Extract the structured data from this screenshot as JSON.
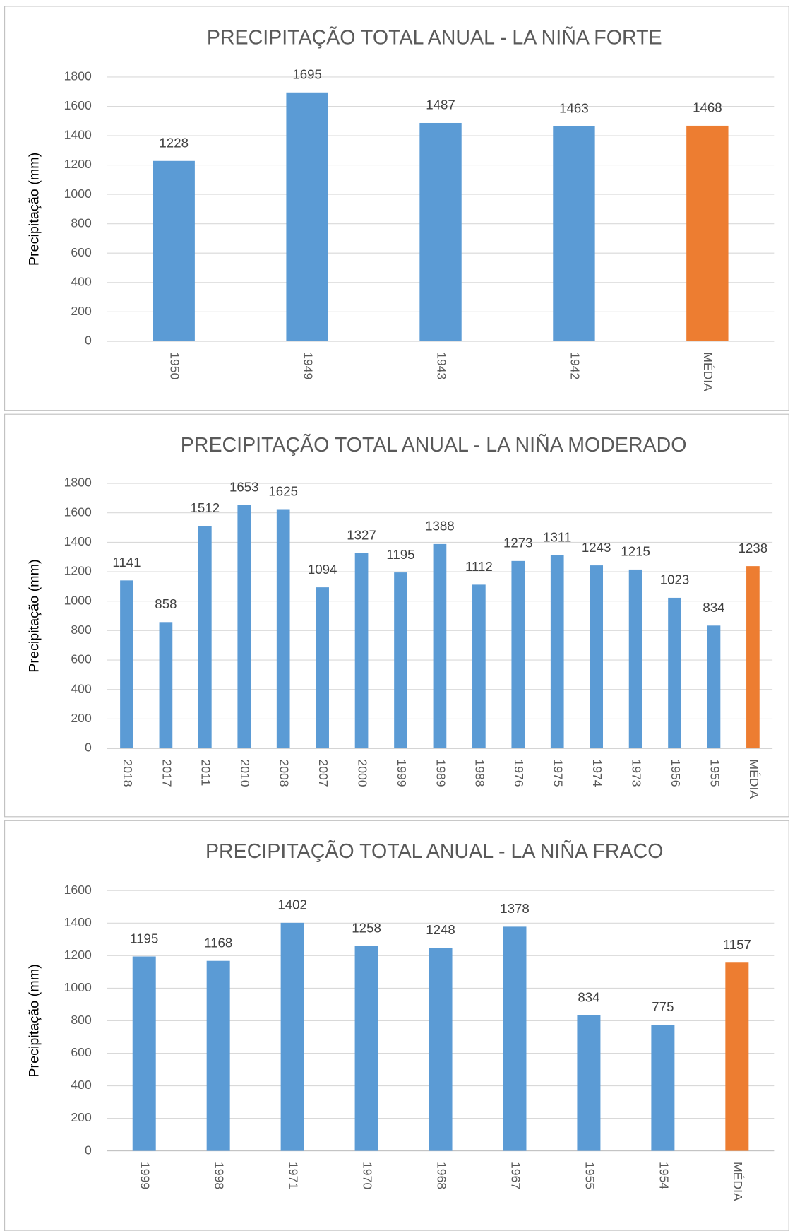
{
  "chart_data": [
    {
      "type": "bar",
      "title": "PRECIPITAÇÃO TOTAL ANUAL - LA NIÑA FORTE",
      "y_label": "Precipitação (mm)",
      "categories": [
        "1950",
        "1949",
        "1943",
        "1942",
        "MÉDIA"
      ],
      "values": [
        1228,
        1695,
        1487,
        1463,
        1468
      ],
      "colors": [
        "#5b9bd5",
        "#5b9bd5",
        "#5b9bd5",
        "#5b9bd5",
        "#ed7d31"
      ],
      "ylim": [
        0,
        1800
      ],
      "yticks": [
        0,
        200,
        400,
        600,
        800,
        1000,
        1200,
        1400,
        1600,
        1800
      ],
      "grid": true
    },
    {
      "type": "bar",
      "title": "PRECIPITAÇÃO TOTAL ANUAL - LA NIÑA MODERADO",
      "y_label": "Precipitação (mm)",
      "categories": [
        "2018",
        "2017",
        "2011",
        "2010",
        "2008",
        "2007",
        "2000",
        "1999",
        "1989",
        "1988",
        "1976",
        "1975",
        "1974",
        "1973",
        "1956",
        "1955",
        "MÉDIA"
      ],
      "values": [
        1141,
        858,
        1512,
        1653,
        1625,
        1094,
        1327,
        1195,
        1388,
        1112,
        1273,
        1311,
        1243,
        1215,
        1023,
        834,
        1238
      ],
      "colors": [
        "#5b9bd5",
        "#5b9bd5",
        "#5b9bd5",
        "#5b9bd5",
        "#5b9bd5",
        "#5b9bd5",
        "#5b9bd5",
        "#5b9bd5",
        "#5b9bd5",
        "#5b9bd5",
        "#5b9bd5",
        "#5b9bd5",
        "#5b9bd5",
        "#5b9bd5",
        "#5b9bd5",
        "#5b9bd5",
        "#ed7d31"
      ],
      "ylim": [
        0,
        1800
      ],
      "yticks": [
        0,
        200,
        400,
        600,
        800,
        1000,
        1200,
        1400,
        1600,
        1800
      ],
      "grid": true
    },
    {
      "type": "bar",
      "title": "PRECIPITAÇÃO TOTAL ANUAL - LA NIÑA FRACO",
      "y_label": "Precipitação (mm)",
      "categories": [
        "1999",
        "1998",
        "1971",
        "1970",
        "1968",
        "1967",
        "1955",
        "1954",
        "MÉDIA"
      ],
      "values": [
        1195,
        1168,
        1402,
        1258,
        1248,
        1378,
        834,
        775,
        1157
      ],
      "colors": [
        "#5b9bd5",
        "#5b9bd5",
        "#5b9bd5",
        "#5b9bd5",
        "#5b9bd5",
        "#5b9bd5",
        "#5b9bd5",
        "#5b9bd5",
        "#ed7d31"
      ],
      "ylim": [
        0,
        1600
      ],
      "yticks": [
        0,
        200,
        400,
        600,
        800,
        1000,
        1200,
        1400,
        1600
      ],
      "grid": true
    }
  ]
}
